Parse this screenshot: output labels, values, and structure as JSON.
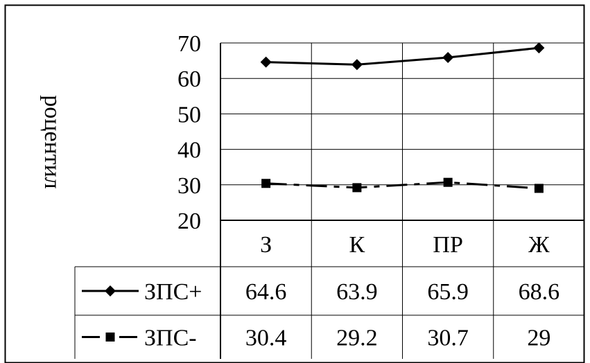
{
  "chart_data": {
    "type": "line",
    "ylabel": "роцентил",
    "ylim": [
      20,
      70
    ],
    "yticks": [
      20,
      30,
      40,
      50,
      60,
      70
    ],
    "categories": [
      "З",
      "К",
      "ПР",
      "Ж"
    ],
    "grid": true,
    "legend": "data-table-left",
    "series": [
      {
        "name": "ЗПС+",
        "values": [
          64.6,
          63.9,
          65.9,
          68.6
        ],
        "marker": "diamond",
        "line": "solid",
        "color": "#000000"
      },
      {
        "name": "ЗПС-",
        "values": [
          30.4,
          29.2,
          30.7,
          29
        ],
        "marker": "square",
        "line": "dash-dot",
        "color": "#000000"
      }
    ],
    "data_table": true
  }
}
